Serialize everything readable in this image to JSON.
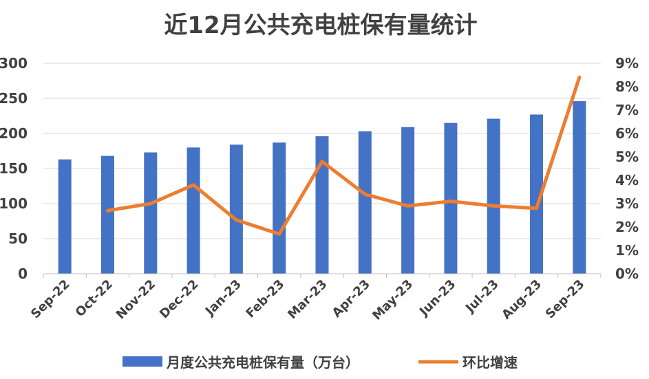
{
  "chart_data": {
    "type": "bar",
    "title": "近12月公共充电桩保有量统计",
    "categories": [
      "Sep-22",
      "Oct-22",
      "Nov-22",
      "Dec-22",
      "Jan-23",
      "Feb-23",
      "Mar-23",
      "Apr-23",
      "May-23",
      "Jun-23",
      "Jul-23",
      "Aug-23",
      "Sep-23"
    ],
    "series": [
      {
        "name": "月度公共充电桩保有量（万台）",
        "type": "bar",
        "axis": "left",
        "color": "#4472C4",
        "values": [
          163,
          168,
          173,
          180,
          184,
          187,
          196,
          203,
          209,
          215,
          221,
          227,
          246
        ]
      },
      {
        "name": "环比增速",
        "type": "line",
        "axis": "right",
        "color": "#ED7D31",
        "values": [
          null,
          2.7,
          3.0,
          3.8,
          2.3,
          1.7,
          4.8,
          3.4,
          2.9,
          3.1,
          2.9,
          2.8,
          8.4
        ],
        "unit": "%"
      }
    ],
    "ylim_left": [
      0,
      300
    ],
    "yticks_left": [
      "0",
      "50",
      "100",
      "150",
      "200",
      "250",
      "300"
    ],
    "ylim_right": [
      0,
      9
    ],
    "yticks_right": [
      "0%",
      "1%",
      "2%",
      "3%",
      "4%",
      "5%",
      "6%",
      "7%",
      "8%",
      "9%"
    ],
    "grid": true,
    "legend": "bottom"
  }
}
